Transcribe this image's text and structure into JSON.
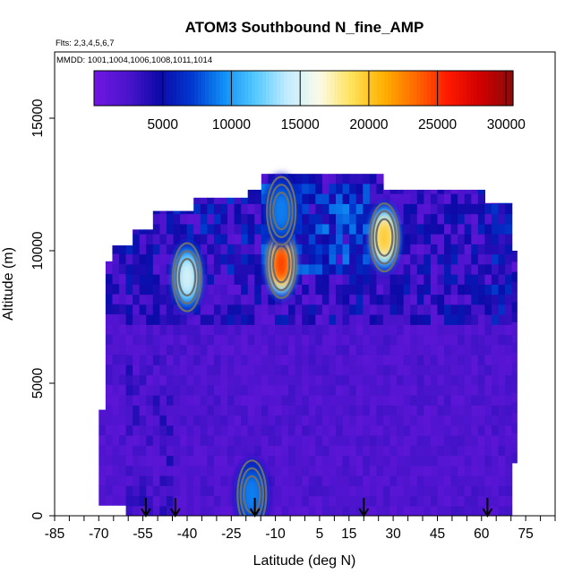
{
  "chart_data": {
    "type": "heatmap",
    "title": "ATOM3 Southbound N_fine_AMP",
    "subtitle_flights": "Flts: 2,3,4,5,6,7",
    "subtitle_dates": "MMDD: 1001,1004,1006,1008,1011,1014",
    "xlabel": "Latitude (deg N)",
    "ylabel": "Altitude (m)",
    "xlim": [
      -85,
      85
    ],
    "ylim": [
      0,
      17500
    ],
    "x_ticks": [
      -85,
      -70,
      -55,
      -40,
      -25,
      -10,
      5,
      15,
      30,
      45,
      60,
      75
    ],
    "y_ticks": [
      0,
      5000,
      10000,
      15000
    ],
    "colorbar": {
      "range": [
        0,
        30500
      ],
      "tick_values": [
        5000,
        10000,
        15000,
        20000,
        25000,
        30000
      ],
      "tick_labels": [
        "5000",
        "10000",
        "15000",
        "20000",
        "25000",
        "30000"
      ]
    },
    "latitude_extent": [
      -70,
      72
    ],
    "flight_markers_lat": [
      -54,
      -44,
      -17,
      20,
      62
    ],
    "hotspots": [
      {
        "lat": -40,
        "alt": 9000,
        "peak": 15000
      },
      {
        "lat": -8,
        "alt": 9500,
        "peak": 25000
      },
      {
        "lat": 27,
        "alt": 10500,
        "peak": 20000
      },
      {
        "lat": -18,
        "alt": 800,
        "peak": 9000
      },
      {
        "lat": -8,
        "alt": 11500,
        "peak": 9000
      }
    ],
    "colors": {
      "background_field": "#7a22e6",
      "contour": "#6e6e6e",
      "colormap": [
        "#6f16e0",
        "#4a14cc",
        "#0c0aa8",
        "#0038cf",
        "#0f8ff5",
        "#55c9ff",
        "#c3ecff",
        "#fbfbe6",
        "#ffe259",
        "#ffb000",
        "#ff6a00",
        "#ff1a00",
        "#d20000",
        "#8c0a0a"
      ]
    }
  }
}
